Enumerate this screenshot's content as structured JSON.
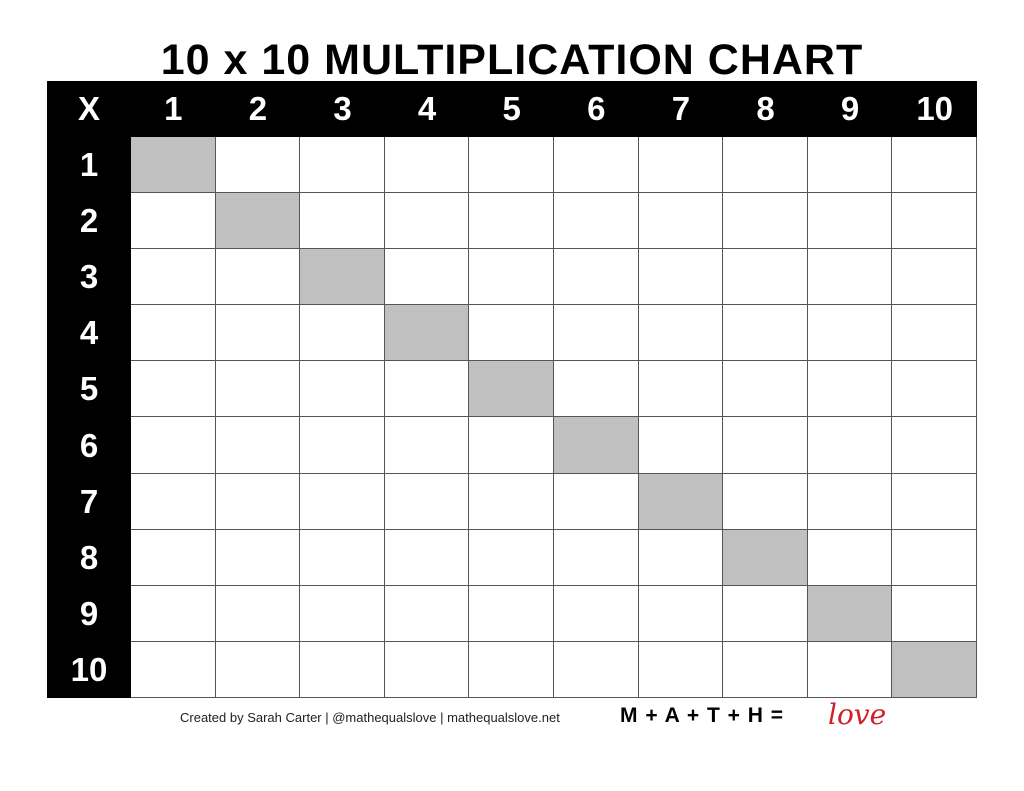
{
  "title": "10 x 10 MULTIPLICATION CHART",
  "corner_label": "X",
  "column_headers": [
    "1",
    "2",
    "3",
    "4",
    "5",
    "6",
    "7",
    "8",
    "9",
    "10"
  ],
  "row_headers": [
    "1",
    "2",
    "3",
    "4",
    "5",
    "6",
    "7",
    "8",
    "9",
    "10"
  ],
  "colors": {
    "header_bg": "#000000",
    "header_text": "#ffffff",
    "diagonal_fill": "#c0c0c0",
    "love_red": "#d0202a"
  },
  "footer": {
    "credit": "Created by Sarah Carter | @mathequalslove | mathequalslove.net",
    "brand": "M + A + T + H =",
    "love": "love"
  }
}
